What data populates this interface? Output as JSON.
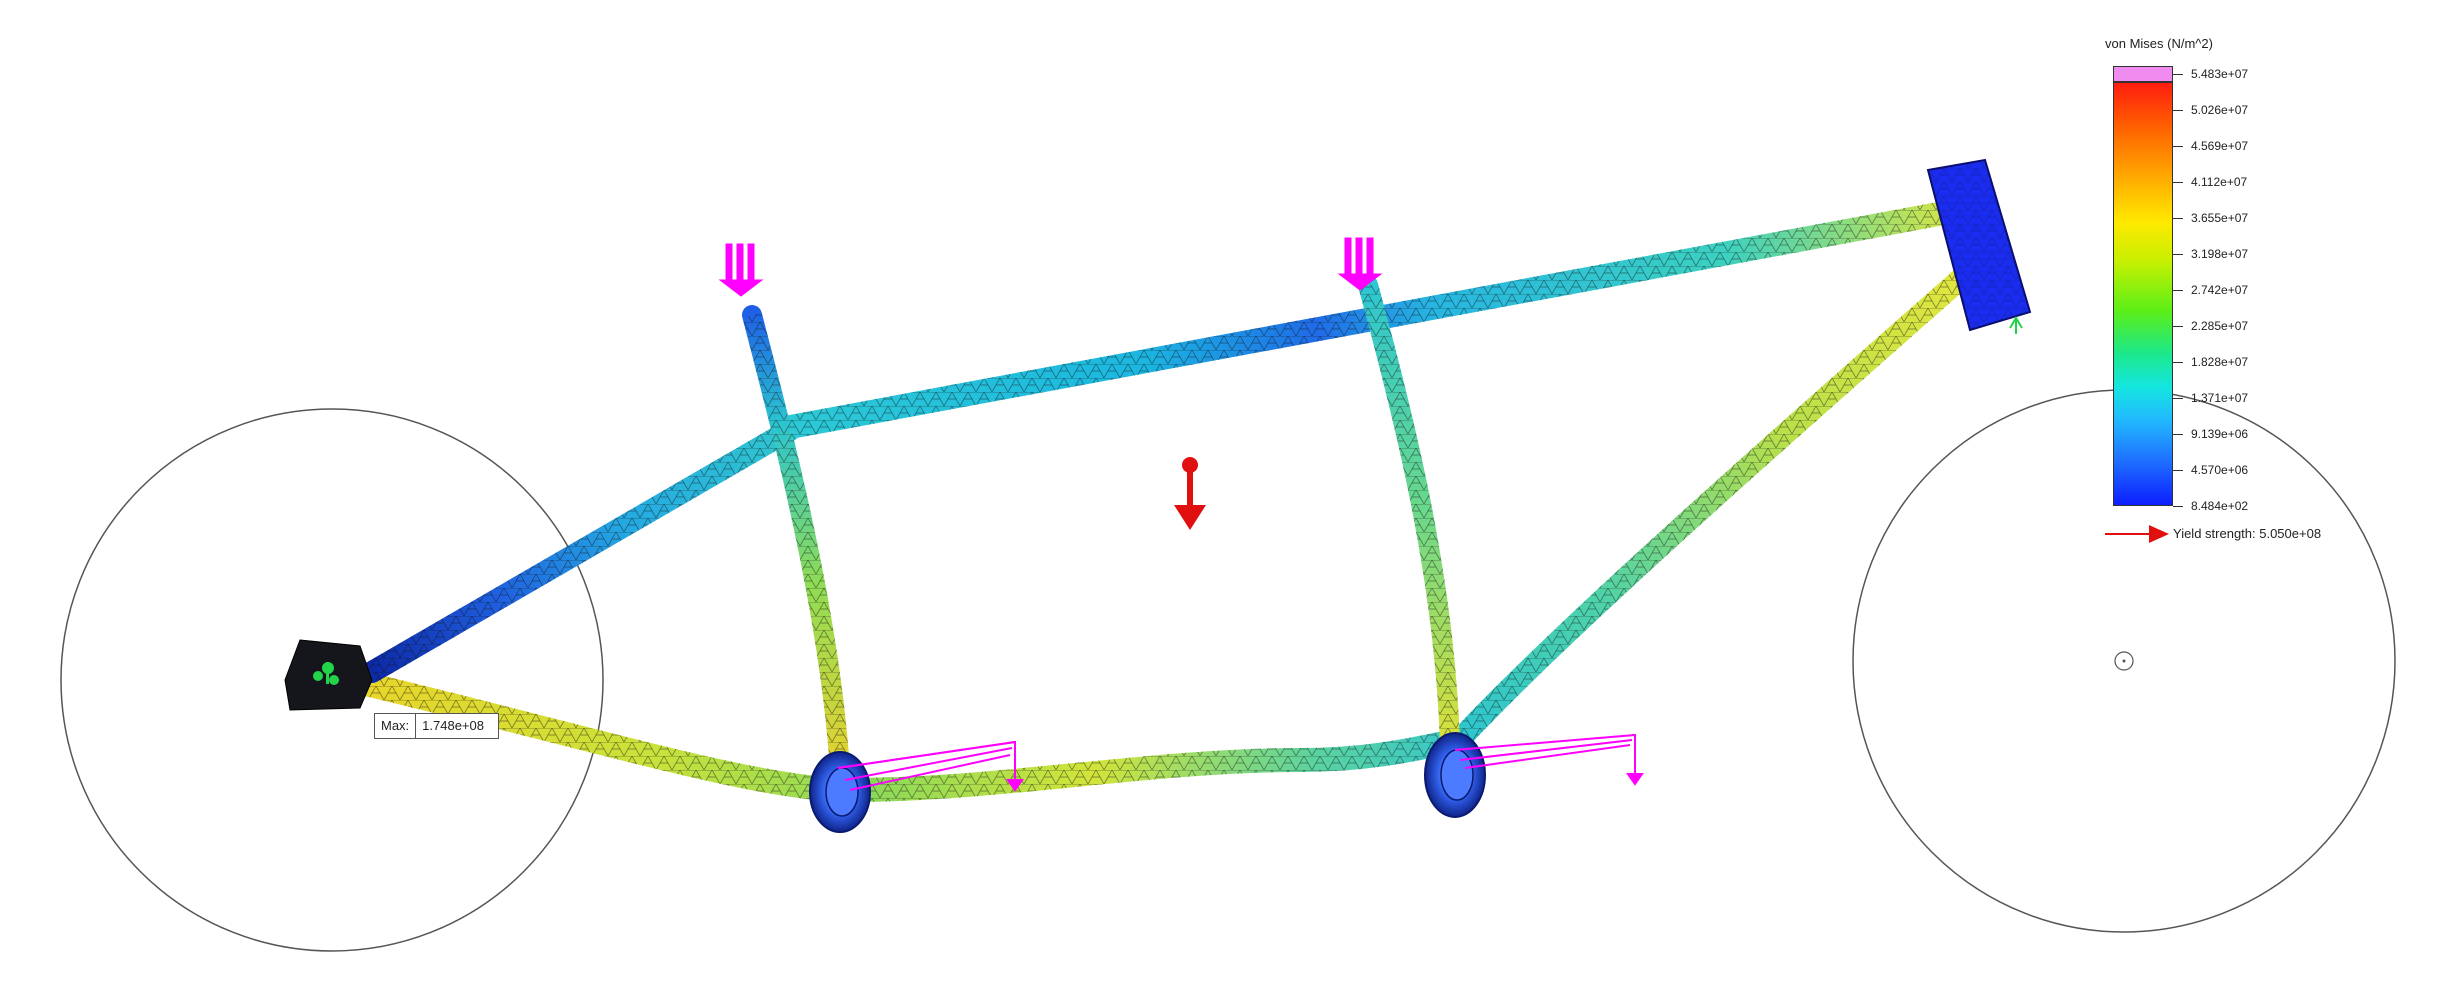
{
  "legend": {
    "title": "von Mises (N/m^2)",
    "ticks": [
      "5.483e+07",
      "5.026e+07",
      "4.569e+07",
      "4.112e+07",
      "3.655e+07",
      "3.198e+07",
      "2.742e+07",
      "2.285e+07",
      "1.828e+07",
      "1.371e+07",
      "9.139e+06",
      "4.570e+06",
      "8.484e+02"
    ],
    "yield_label": "Yield strength: 5.050e+08"
  },
  "max_callout": {
    "label": "Max:",
    "value": "1.748e+08"
  },
  "colors": {
    "load_arrow": "#ff00ff",
    "gravity_arrow": "#e01010",
    "fixture": "#1a3cff",
    "frame_mesh": "#1a1a1a",
    "wheel_outline": "#555555"
  },
  "icons": [
    "load-arrow-icon",
    "gravity-arrow-icon",
    "fixture-icon",
    "wheel-center-icon"
  ]
}
